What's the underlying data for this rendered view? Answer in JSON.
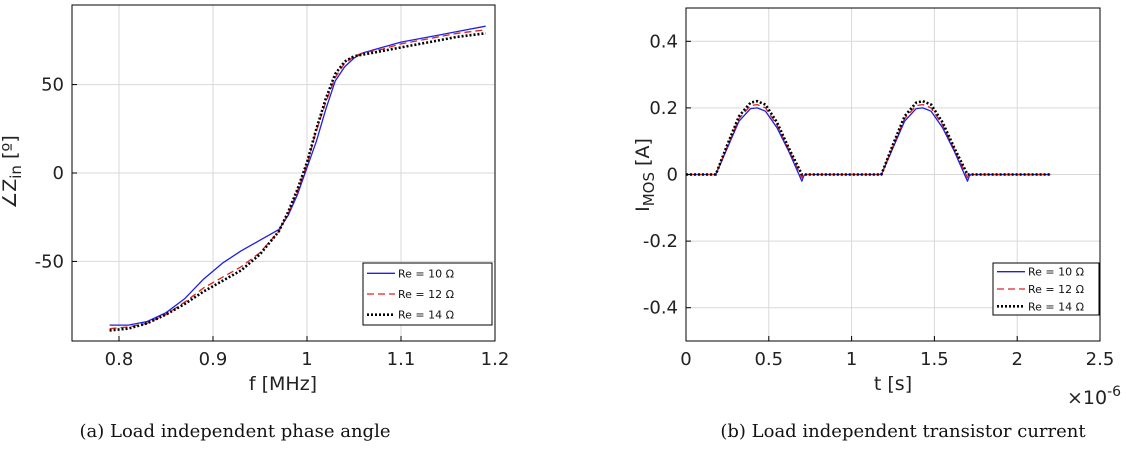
{
  "chart_data": [
    {
      "type": "line",
      "caption": "(a) Load independent phase angle",
      "xlabel": "f [MHz]",
      "ylabel_main": "∠Z",
      "ylabel_sub": "in",
      "ylabel_tail": " [º]",
      "xlim": [
        0.75,
        1.2
      ],
      "ylim": [
        -95,
        95
      ],
      "xticks": [
        0.8,
        0.9,
        1.0,
        1.1,
        1.2
      ],
      "xtick_labels": [
        "0.8",
        "0.9",
        "1",
        "1.1",
        "1.2"
      ],
      "yticks": [
        -50,
        0,
        50
      ],
      "ytick_labels": [
        "-50",
        "0",
        "50"
      ],
      "grid": true,
      "legend_position": "bottom-right",
      "series": [
        {
          "name": "Re = 10 Ω",
          "color": "#1f1fe6",
          "style": "solid",
          "x": [
            0.79,
            0.81,
            0.83,
            0.85,
            0.87,
            0.89,
            0.91,
            0.93,
            0.95,
            0.97,
            0.98,
            0.99,
            1.0,
            1.01,
            1.02,
            1.03,
            1.04,
            1.05,
            1.06,
            1.08,
            1.1,
            1.12,
            1.14,
            1.16,
            1.19
          ],
          "y": [
            -86,
            -86,
            -84,
            -79,
            -71,
            -60,
            -51,
            -44,
            -38,
            -32,
            -24,
            -12,
            3,
            18,
            36,
            52,
            60,
            65,
            68,
            71,
            74,
            76,
            78,
            80,
            83
          ]
        },
        {
          "name": "Re = 12 Ω",
          "color": "#e02020",
          "style": "dashed",
          "x": [
            0.79,
            0.81,
            0.83,
            0.85,
            0.87,
            0.89,
            0.91,
            0.93,
            0.95,
            0.97,
            0.98,
            0.99,
            1.0,
            1.01,
            1.02,
            1.03,
            1.04,
            1.05,
            1.06,
            1.08,
            1.1,
            1.12,
            1.14,
            1.16,
            1.19
          ],
          "y": [
            -88,
            -87,
            -85,
            -80,
            -73,
            -65,
            -59,
            -53,
            -45,
            -33,
            -23,
            -10,
            5,
            24,
            40,
            54,
            62,
            66,
            68,
            70,
            73,
            75,
            77,
            79,
            81
          ]
        },
        {
          "name": "Re = 14 Ω",
          "color": "#000000",
          "style": "dotted",
          "x": [
            0.79,
            0.81,
            0.83,
            0.85,
            0.87,
            0.89,
            0.91,
            0.93,
            0.95,
            0.97,
            0.98,
            0.99,
            1.0,
            1.01,
            1.02,
            1.03,
            1.04,
            1.05,
            1.06,
            1.08,
            1.1,
            1.12,
            1.14,
            1.16,
            1.19
          ],
          "y": [
            -89,
            -88,
            -85,
            -80,
            -74,
            -67,
            -61,
            -55,
            -46,
            -33,
            -22,
            -9,
            6,
            25,
            42,
            56,
            63,
            66,
            67,
            69,
            71,
            73,
            75,
            77,
            79
          ]
        }
      ]
    },
    {
      "type": "line",
      "caption": "(b) Load independent transistor current",
      "xlabel": "t [s]",
      "ylabel_main": "I",
      "ylabel_sub": "MOS",
      "ylabel_tail": " [A]",
      "x_multiplier": "×10",
      "x_multiplier_exp": "-6",
      "xlim": [
        0,
        2.5
      ],
      "ylim": [
        -0.5,
        0.5
      ],
      "xticks": [
        0,
        0.5,
        1.0,
        1.5,
        2.0,
        2.5
      ],
      "xtick_labels": [
        "0",
        "0.5",
        "1",
        "1.5",
        "2",
        "2.5"
      ],
      "yticks": [
        -0.4,
        -0.2,
        0,
        0.2,
        0.4
      ],
      "ytick_labels": [
        "-0.4",
        "-0.2",
        "0",
        "0.2",
        "0.4"
      ],
      "grid": true,
      "legend_position": "bottom-right",
      "series": [
        {
          "name": "Re = 10 Ω",
          "color": "#1f1fe6",
          "style": "solid",
          "peak": 0.2,
          "dip": -0.02,
          "x_unit_scale": 1e-06,
          "x": [
            0,
            0.18,
            0.25,
            0.32,
            0.39,
            0.43,
            0.48,
            0.55,
            0.62,
            0.7,
            0.71,
            0.72,
            1.18,
            1.25,
            1.32,
            1.39,
            1.43,
            1.48,
            1.55,
            1.62,
            1.7,
            1.71,
            1.72,
            2.2
          ],
          "y": [
            0,
            0,
            0.08,
            0.16,
            0.198,
            0.2,
            0.19,
            0.14,
            0.07,
            -0.02,
            -0.005,
            0,
            0,
            0.08,
            0.16,
            0.198,
            0.2,
            0.19,
            0.14,
            0.07,
            -0.02,
            -0.005,
            0,
            0
          ]
        },
        {
          "name": "Re = 12 Ω",
          "color": "#e02020",
          "style": "dashed",
          "x": [
            0,
            0.18,
            0.25,
            0.32,
            0.39,
            0.43,
            0.48,
            0.55,
            0.62,
            0.7,
            0.71,
            0.72,
            1.18,
            1.25,
            1.32,
            1.39,
            1.43,
            1.48,
            1.55,
            1.62,
            1.7,
            1.71,
            1.72,
            2.2
          ],
          "y": [
            0,
            0,
            0.085,
            0.168,
            0.207,
            0.21,
            0.2,
            0.148,
            0.075,
            -0.01,
            0,
            0,
            0,
            0.085,
            0.168,
            0.207,
            0.21,
            0.2,
            0.148,
            0.075,
            -0.01,
            0,
            0,
            0
          ]
        },
        {
          "name": "Re = 14 Ω",
          "color": "#000000",
          "style": "dotted",
          "x": [
            0,
            0.18,
            0.25,
            0.32,
            0.39,
            0.43,
            0.48,
            0.55,
            0.62,
            0.7,
            0.71,
            0.72,
            1.18,
            1.25,
            1.32,
            1.39,
            1.43,
            1.48,
            1.55,
            1.62,
            1.7,
            1.71,
            1.72,
            2.2
          ],
          "y": [
            0,
            0,
            0.09,
            0.175,
            0.216,
            0.22,
            0.21,
            0.156,
            0.08,
            0,
            0,
            0,
            0,
            0.09,
            0.175,
            0.216,
            0.22,
            0.21,
            0.156,
            0.08,
            0,
            0,
            0,
            0
          ]
        }
      ]
    }
  ]
}
